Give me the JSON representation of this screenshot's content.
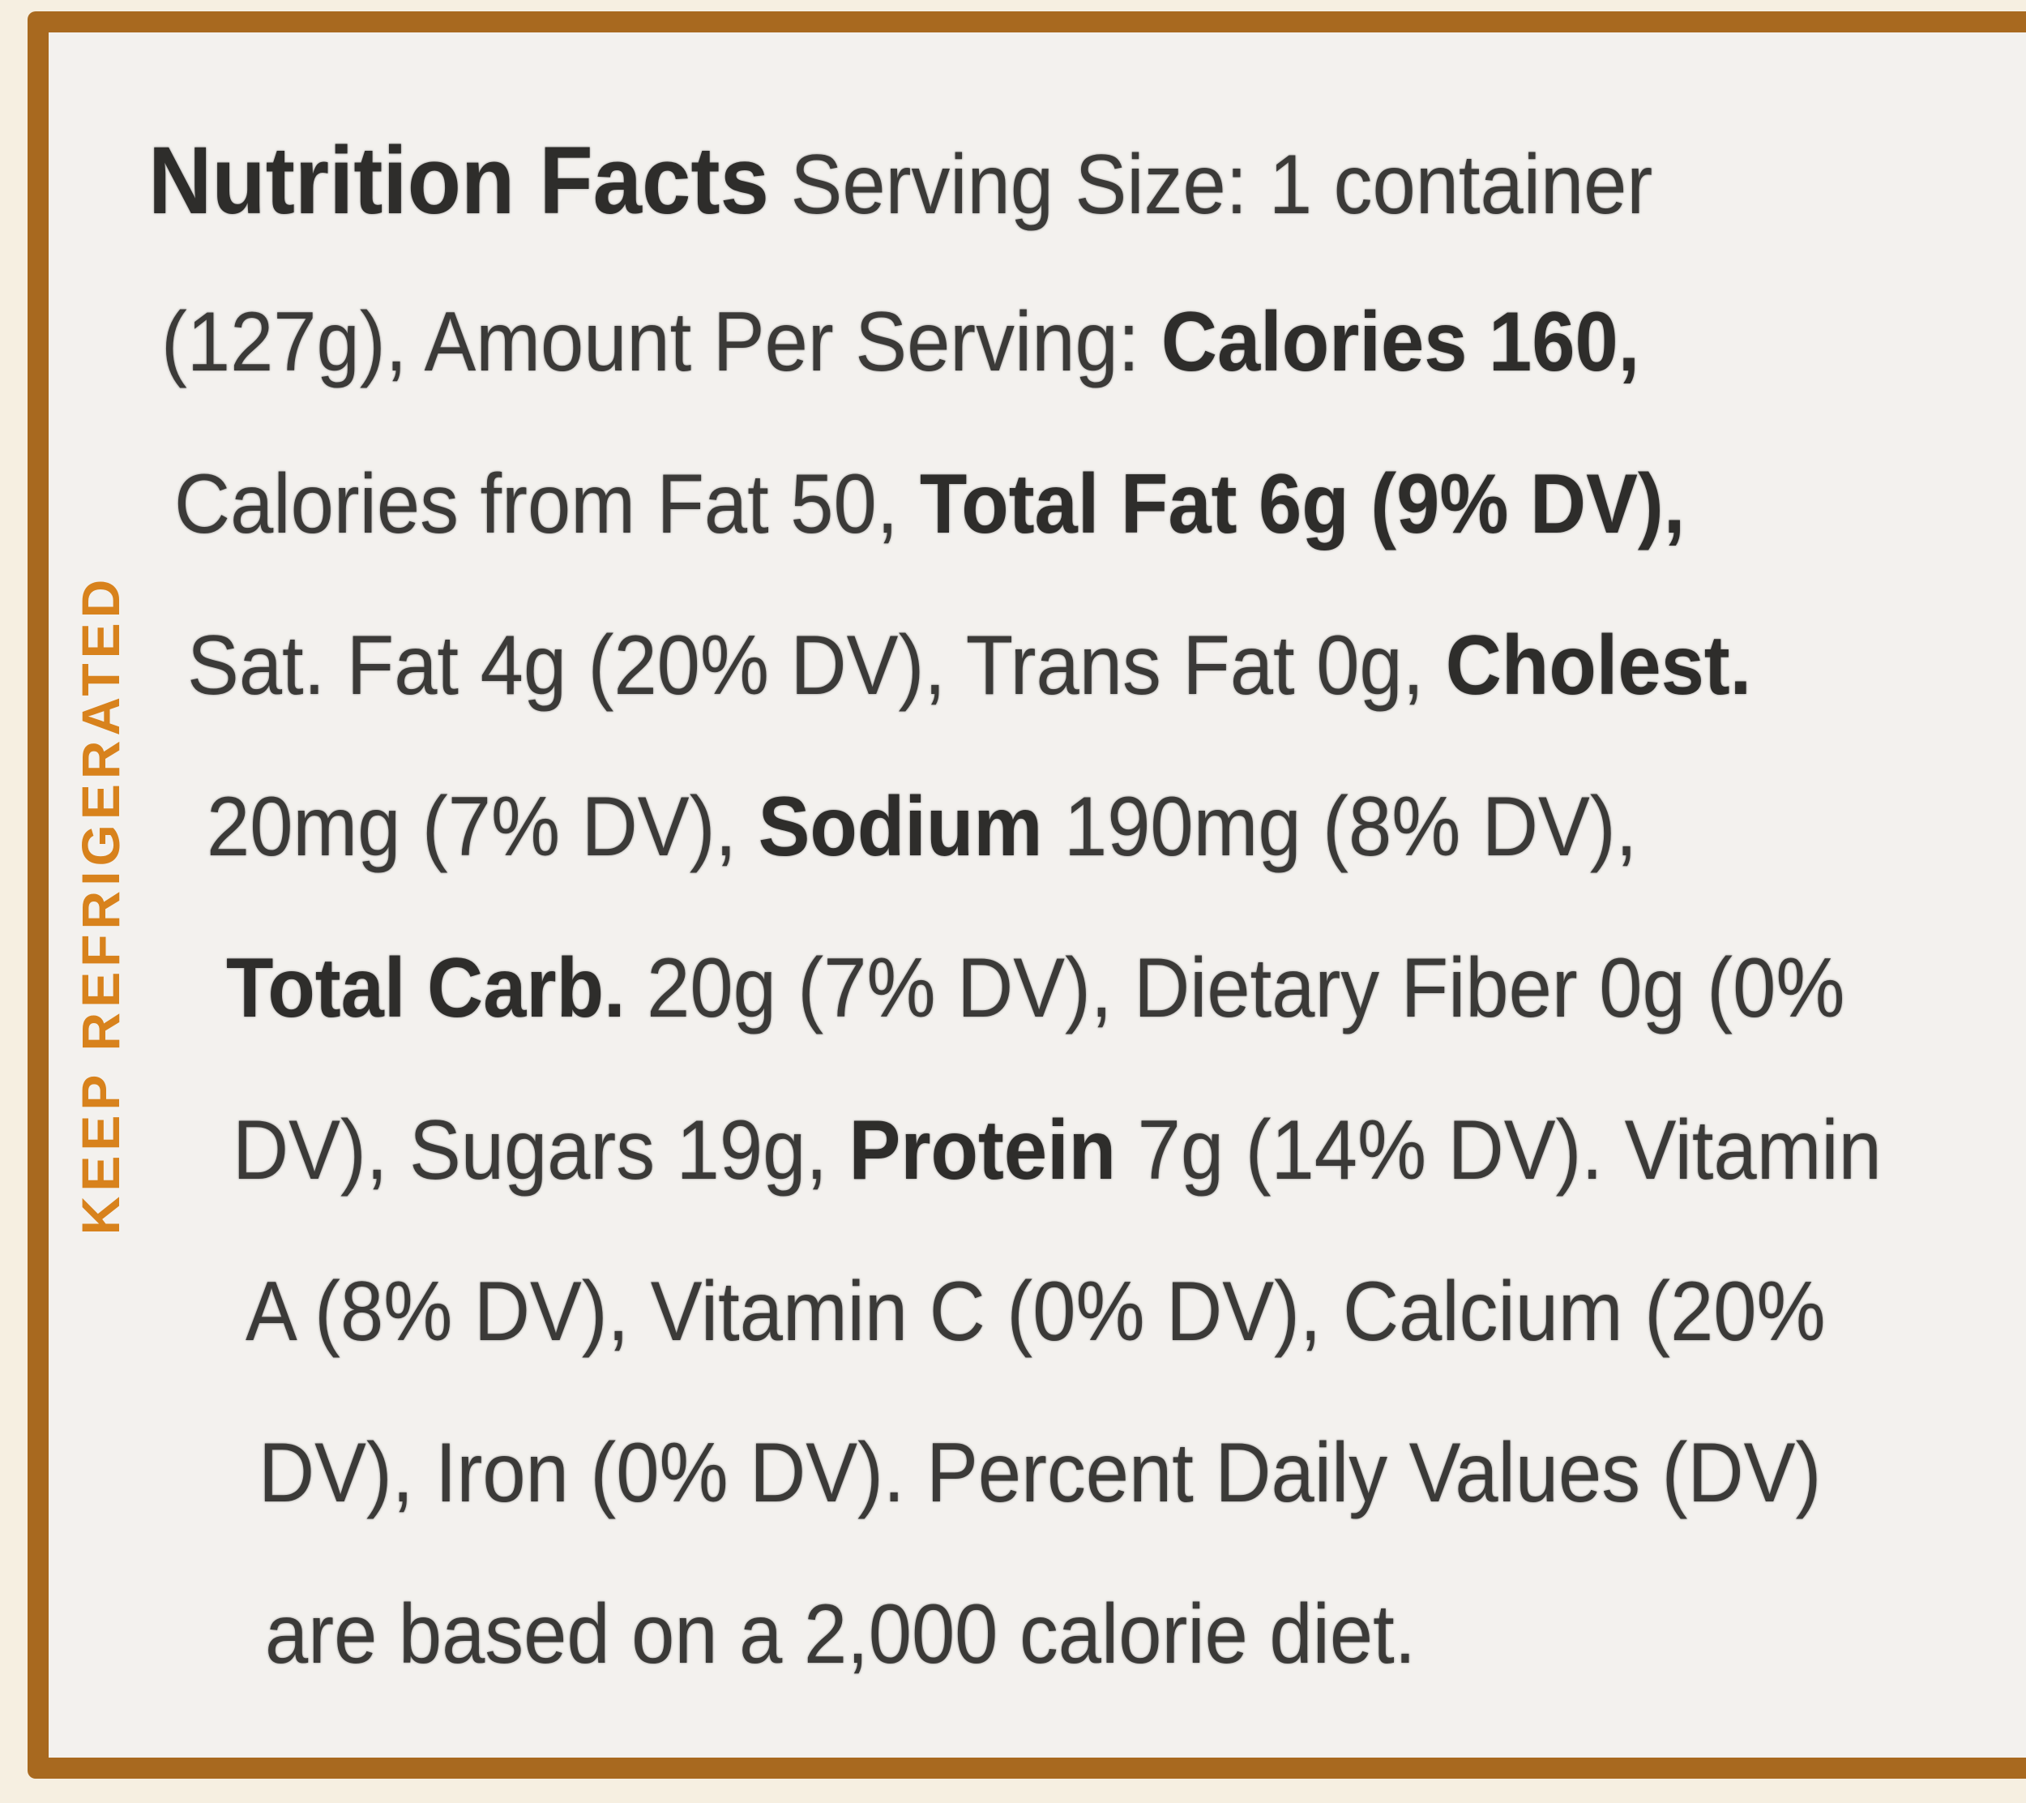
{
  "side_text": "KEEP REFRIGERATED",
  "label": {
    "lines": [
      [
        {
          "text": "Nutrition Facts",
          "bold": true,
          "title": true
        },
        {
          "text": " Serving Size: 1 container",
          "bold": false
        }
      ],
      [
        {
          "text": "(127g), Amount Per Serving: ",
          "bold": false
        },
        {
          "text": "Calories 160,",
          "bold": true
        }
      ],
      [
        {
          "text": "Calories from Fat 50, ",
          "bold": false
        },
        {
          "text": "Total Fat 6g (9% DV),",
          "bold": true
        }
      ],
      [
        {
          "text": "Sat. Fat 4g (20% DV), Trans Fat 0g, ",
          "bold": false
        },
        {
          "text": "Cholest.",
          "bold": true
        }
      ],
      [
        {
          "text": "20mg (7% DV), ",
          "bold": false
        },
        {
          "text": "Sodium",
          "bold": true
        },
        {
          "text": " 190mg (8% DV),",
          "bold": false
        }
      ],
      [
        {
          "text": "Total Carb.",
          "bold": true
        },
        {
          "text": " 20g (7% DV), Dietary Fiber 0g (0%",
          "bold": false
        }
      ],
      [
        {
          "text": "DV), Sugars 19g, ",
          "bold": false
        },
        {
          "text": "Protein",
          "bold": true
        },
        {
          "text": " 7g (14% DV). Vitamin",
          "bold": false
        }
      ],
      [
        {
          "text": "A (8% DV), Vitamin C (0% DV), Calcium (20%",
          "bold": false
        }
      ],
      [
        {
          "text": "DV), Iron (0% DV). Percent Daily Values (DV)",
          "bold": false
        }
      ],
      [
        {
          "text": "are based on a 2,000 calorie diet.",
          "bold": false
        }
      ]
    ]
  }
}
